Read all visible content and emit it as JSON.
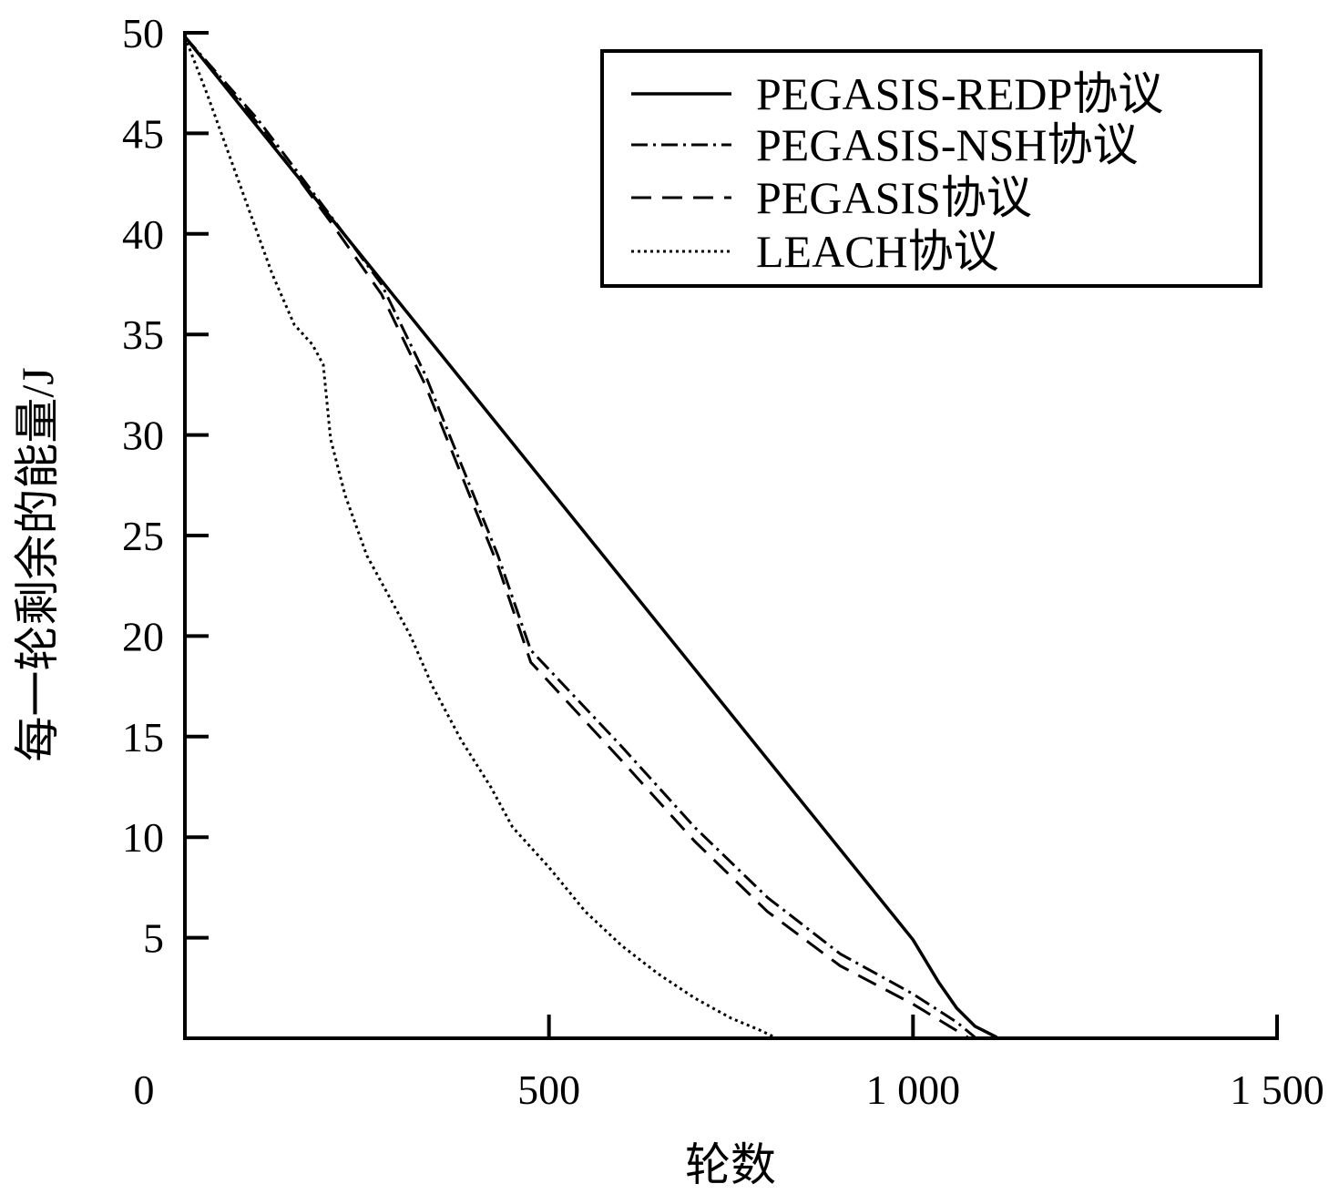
{
  "chart_data": {
    "type": "line",
    "title": "",
    "xlabel": "轮数",
    "ylabel": "每一轮剩余的能量/J",
    "xlim": [
      0,
      1500
    ],
    "ylim": [
      0,
      50
    ],
    "x_ticks": [
      {
        "value": 0,
        "label": "0"
      },
      {
        "value": 500,
        "label": "500"
      },
      {
        "value": 1000,
        "label": "1 000"
      },
      {
        "value": 1500,
        "label": "1 500"
      }
    ],
    "y_ticks": [
      {
        "value": 5,
        "label": "5"
      },
      {
        "value": 10,
        "label": "10"
      },
      {
        "value": 15,
        "label": "15"
      },
      {
        "value": 20,
        "label": "20"
      },
      {
        "value": 25,
        "label": "25"
      },
      {
        "value": 30,
        "label": "30"
      },
      {
        "value": 35,
        "label": "35"
      },
      {
        "value": 40,
        "label": "40"
      },
      {
        "value": 45,
        "label": "45"
      },
      {
        "value": 50,
        "label": "50"
      }
    ],
    "y_zero_label": "0",
    "grid": false,
    "legend_position": "top-right",
    "series": [
      {
        "name": "PEGASIS-REDP协议",
        "style": "solid",
        "color": "#000000",
        "points": [
          [
            0,
            49.8
          ],
          [
            1000,
            4.9
          ],
          [
            1035,
            2.8
          ],
          [
            1060,
            1.5
          ],
          [
            1085,
            0.6
          ],
          [
            1115,
            0.05
          ]
        ]
      },
      {
        "name": "PEGASIS-NSH协议",
        "style": "dashdot",
        "color": "#000000",
        "points": [
          [
            0,
            49.8
          ],
          [
            100,
            45.7
          ],
          [
            200,
            40.9
          ],
          [
            270,
            37.5
          ],
          [
            330,
            33.0
          ],
          [
            380,
            28.5
          ],
          [
            430,
            24.0
          ],
          [
            475,
            19.3
          ],
          [
            600,
            14.5
          ],
          [
            700,
            10.5
          ],
          [
            800,
            7.0
          ],
          [
            900,
            4.2
          ],
          [
            1000,
            2.2
          ],
          [
            1060,
            0.8
          ],
          [
            1085,
            0.05
          ]
        ]
      },
      {
        "name": "PEGASIS协议",
        "style": "dashed",
        "color": "#000000",
        "points": [
          [
            0,
            49.8
          ],
          [
            100,
            45.5
          ],
          [
            200,
            40.6
          ],
          [
            270,
            37.0
          ],
          [
            330,
            32.5
          ],
          [
            380,
            28.0
          ],
          [
            430,
            23.5
          ],
          [
            475,
            18.7
          ],
          [
            600,
            13.8
          ],
          [
            700,
            9.8
          ],
          [
            800,
            6.3
          ],
          [
            900,
            3.6
          ],
          [
            1000,
            1.7
          ],
          [
            1050,
            0.6
          ],
          [
            1075,
            0.05
          ]
        ]
      },
      {
        "name": "LEACH协议",
        "style": "dotted",
        "color": "#000000",
        "points": [
          [
            0,
            49.8
          ],
          [
            30,
            47.0
          ],
          [
            60,
            44.0
          ],
          [
            90,
            41.0
          ],
          [
            120,
            38.0
          ],
          [
            150,
            35.5
          ],
          [
            175,
            34.5
          ],
          [
            190,
            33.5
          ],
          [
            200,
            29.8
          ],
          [
            220,
            27.0
          ],
          [
            250,
            24.0
          ],
          [
            280,
            22.0
          ],
          [
            310,
            20.0
          ],
          [
            340,
            17.5
          ],
          [
            380,
            14.8
          ],
          [
            420,
            12.5
          ],
          [
            450,
            10.5
          ],
          [
            500,
            8.5
          ],
          [
            550,
            6.3
          ],
          [
            600,
            4.6
          ],
          [
            650,
            3.2
          ],
          [
            700,
            2.0
          ],
          [
            750,
            1.0
          ],
          [
            790,
            0.4
          ],
          [
            810,
            0.05
          ]
        ]
      }
    ]
  }
}
